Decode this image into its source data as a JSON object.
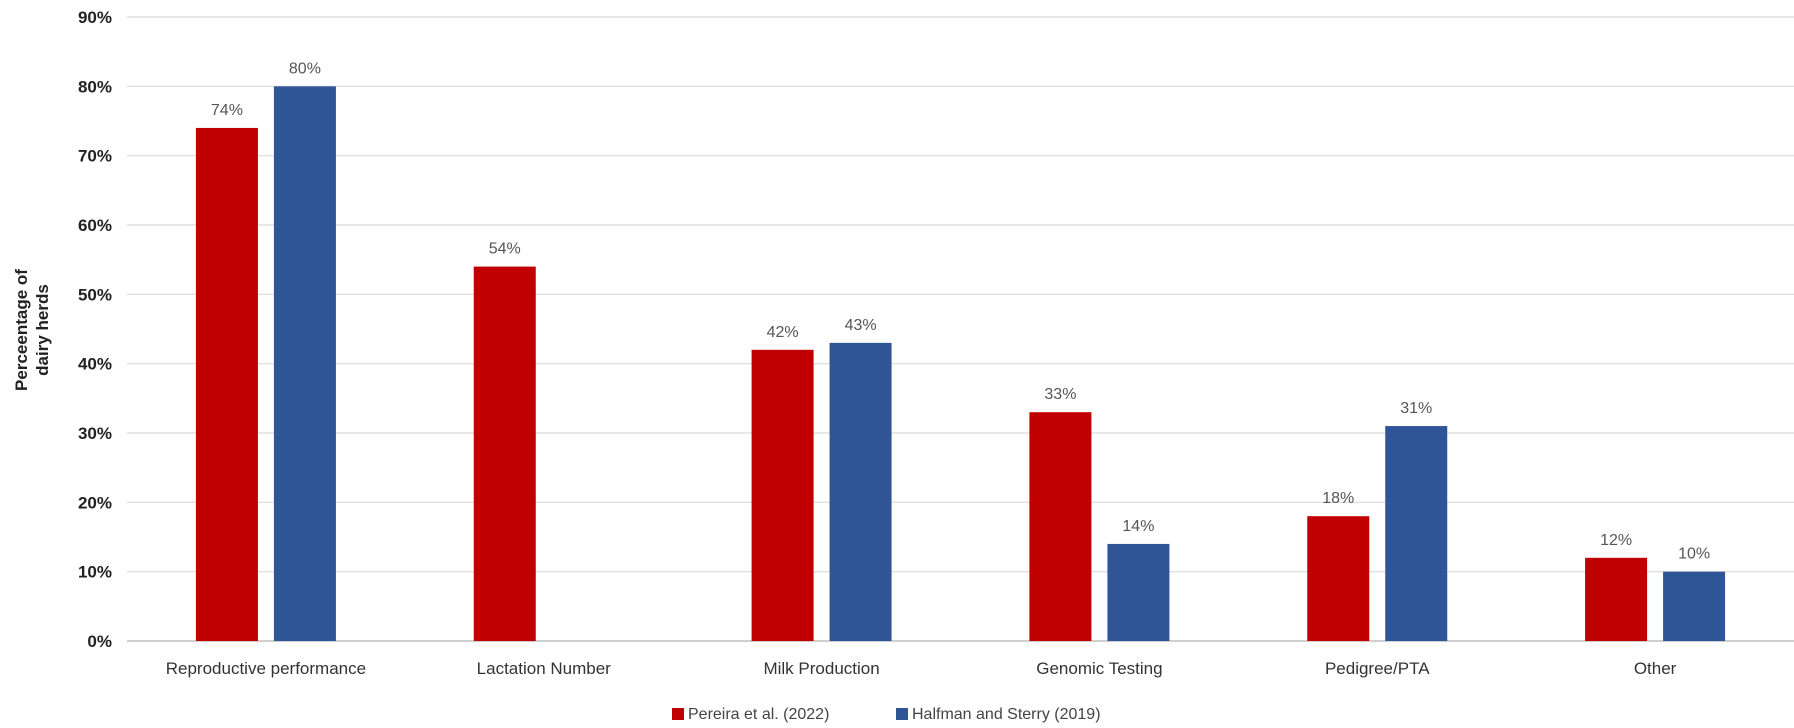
{
  "chart_data": {
    "type": "bar",
    "title": "",
    "xlabel": "",
    "ylabel_lines": [
      "Perceentage of",
      "dairy herds"
    ],
    "ylim": [
      0,
      90
    ],
    "yticks": [
      0,
      10,
      20,
      30,
      40,
      50,
      60,
      70,
      80,
      90
    ],
    "ytick_labels": [
      "0%",
      "10%",
      "20%",
      "30%",
      "40%",
      "50%",
      "60%",
      "70%",
      "80%",
      "90%"
    ],
    "grid": true,
    "legend_position": "bottom",
    "categories": [
      "Reproductive performance",
      "Lactation Number",
      "Milk Production",
      "Genomic Testing",
      "Pedigree/PTA",
      "Other"
    ],
    "series": [
      {
        "name": "Pereira et al. (2022)",
        "color": "#C00000",
        "values": [
          74,
          54,
          42,
          33,
          18,
          12
        ],
        "labels": [
          "74%",
          "54%",
          "42%",
          "33%",
          "18%",
          "12%"
        ]
      },
      {
        "name": "Halfman and Sterry (2019)",
        "color": "#2F5597",
        "values": [
          80,
          null,
          43,
          14,
          31,
          10
        ],
        "labels": [
          "80%",
          null,
          "43%",
          "14%",
          "31%",
          "10%"
        ]
      }
    ]
  }
}
